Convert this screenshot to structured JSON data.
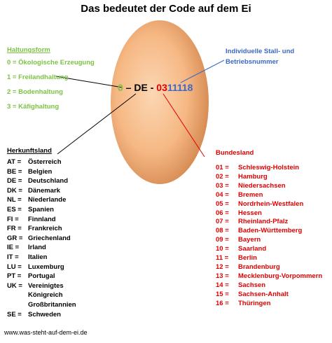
{
  "title": "Das bedeutet der Code auf dem Ei",
  "code": {
    "part1": "0",
    "sep1": " – ",
    "part2": "DE",
    "sep2": " - ",
    "part3": "03",
    "part4": "11118"
  },
  "haltungsform": {
    "heading": "Haltungsform",
    "items": [
      "0 = Ökologische Erzeugung",
      "1 = Freilandhaltung",
      "2 = Bodenhaltung",
      "3 = Käfighaltung"
    ]
  },
  "stall": {
    "line1": "Individuelle Stall- und",
    "line2": "Betriebsnummer"
  },
  "herkunftsland": {
    "heading": "Herkunftsland",
    "rows": [
      {
        "code": "AT =",
        "name": "Österreich"
      },
      {
        "code": "BE =",
        "name": "Belgien"
      },
      {
        "code": "DE =",
        "name": "Deutschland"
      },
      {
        "code": "DK =",
        "name": "Dänemark"
      },
      {
        "code": "NL =",
        "name": "Niederlande"
      },
      {
        "code": "ES =",
        "name": "Spanien"
      },
      {
        "code": "FI  =",
        "name": "Finnland"
      },
      {
        "code": "FR =",
        "name": "Frankreich"
      },
      {
        "code": "GR =",
        "name": "Griechenland"
      },
      {
        "code": "IE =",
        "name": "Irland"
      },
      {
        "code": "IT =",
        "name": "Italien"
      },
      {
        "code": "LU =",
        "name": "Luxemburg"
      },
      {
        "code": "PT =",
        "name": "Portugal"
      },
      {
        "code": "UK =",
        "name": "Vereinigtes"
      },
      {
        "code": "",
        "name": "Königreich"
      },
      {
        "code": "",
        "name": "Großbritannien"
      },
      {
        "code": "SE =",
        "name": "Schweden"
      }
    ]
  },
  "bundesland": {
    "heading": "Bundesland",
    "rows": [
      {
        "code": "01 =",
        "name": "Schleswig-Holstein"
      },
      {
        "code": "02 =",
        "name": "Hamburg"
      },
      {
        "code": "03 =",
        "name": "Niedersachsen"
      },
      {
        "code": "04 =",
        "name": "Bremen"
      },
      {
        "code": "05 =",
        "name": "Nordrhein-Westfalen"
      },
      {
        "code": "06 =",
        "name": "Hessen"
      },
      {
        "code": "07 =",
        "name": "Rheinland-Pfalz"
      },
      {
        "code": "08 =",
        "name": "Baden-Württemberg"
      },
      {
        "code": "09 =",
        "name": "Bayern"
      },
      {
        "code": "10 =",
        "name": "Saarland"
      },
      {
        "code": "11 =",
        "name": "Berlin"
      },
      {
        "code": "12 =",
        "name": "Brandenburg"
      },
      {
        "code": "13 =",
        "name": "Mecklenburg-Vorpommern"
      },
      {
        "code": "14 =",
        "name": "Sachsen"
      },
      {
        "code": "15 =",
        "name": "Sachsen-Anhalt"
      },
      {
        "code": "16 =",
        "name": "Thüringen"
      }
    ]
  },
  "footer": "www.was-steht-auf-dem-ei.de",
  "colors": {
    "green": "#7cc243",
    "red": "#e00000",
    "blue": "#3b68c4",
    "egg_light": "#fbd7b4",
    "egg_mid": "#f6b884",
    "egg_dark": "#d68a52"
  }
}
